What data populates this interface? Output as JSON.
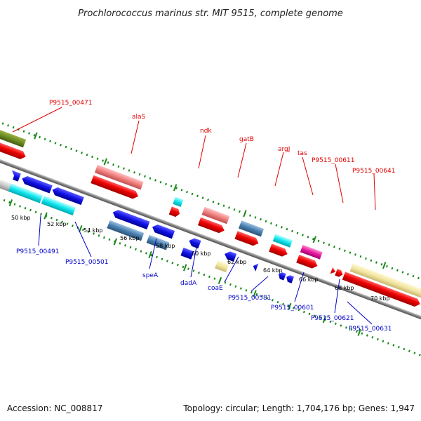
{
  "title": "Prochlorococcus marinus str. MIT 9515, complete genome",
  "footer": {
    "accession": "Accession: NC_008817",
    "summary": "Topology: circular; Length: 1,704,176 bp; Genes: 1,947"
  },
  "ticks": [
    "50 kbp",
    "52 kbp",
    "54 kbp",
    "56 kbp",
    "58 kbp",
    "60 kbp",
    "62 kbp",
    "64 kbp",
    "66 kbp",
    "68 kbp",
    "70 kbp"
  ],
  "forward_gene_labels": [
    "P9515_00471",
    "alaS",
    "ndk",
    "gatB",
    "argJ",
    "tas",
    "P9515_00611",
    "P9515_00641"
  ],
  "reverse_gene_labels": [
    "P9515_00491",
    "P9515_00501",
    "speA",
    "dadA",
    "coaE",
    "P9515_00581",
    "P9515_00601",
    "P9515_00621",
    "P9515_00631"
  ],
  "colors": {
    "red": "#e80000",
    "pink": "#f08080",
    "blue": "#0a0ae0",
    "steelblue": "#4a7fb0",
    "cyan": "#18e6ee",
    "magenta": "#e61aa0",
    "khaki": "#f1e5a0",
    "olive": "#6b8e23",
    "grey": "#c8c8c8",
    "green_dots": "#1a8a1a",
    "backbone": "#808080"
  }
}
